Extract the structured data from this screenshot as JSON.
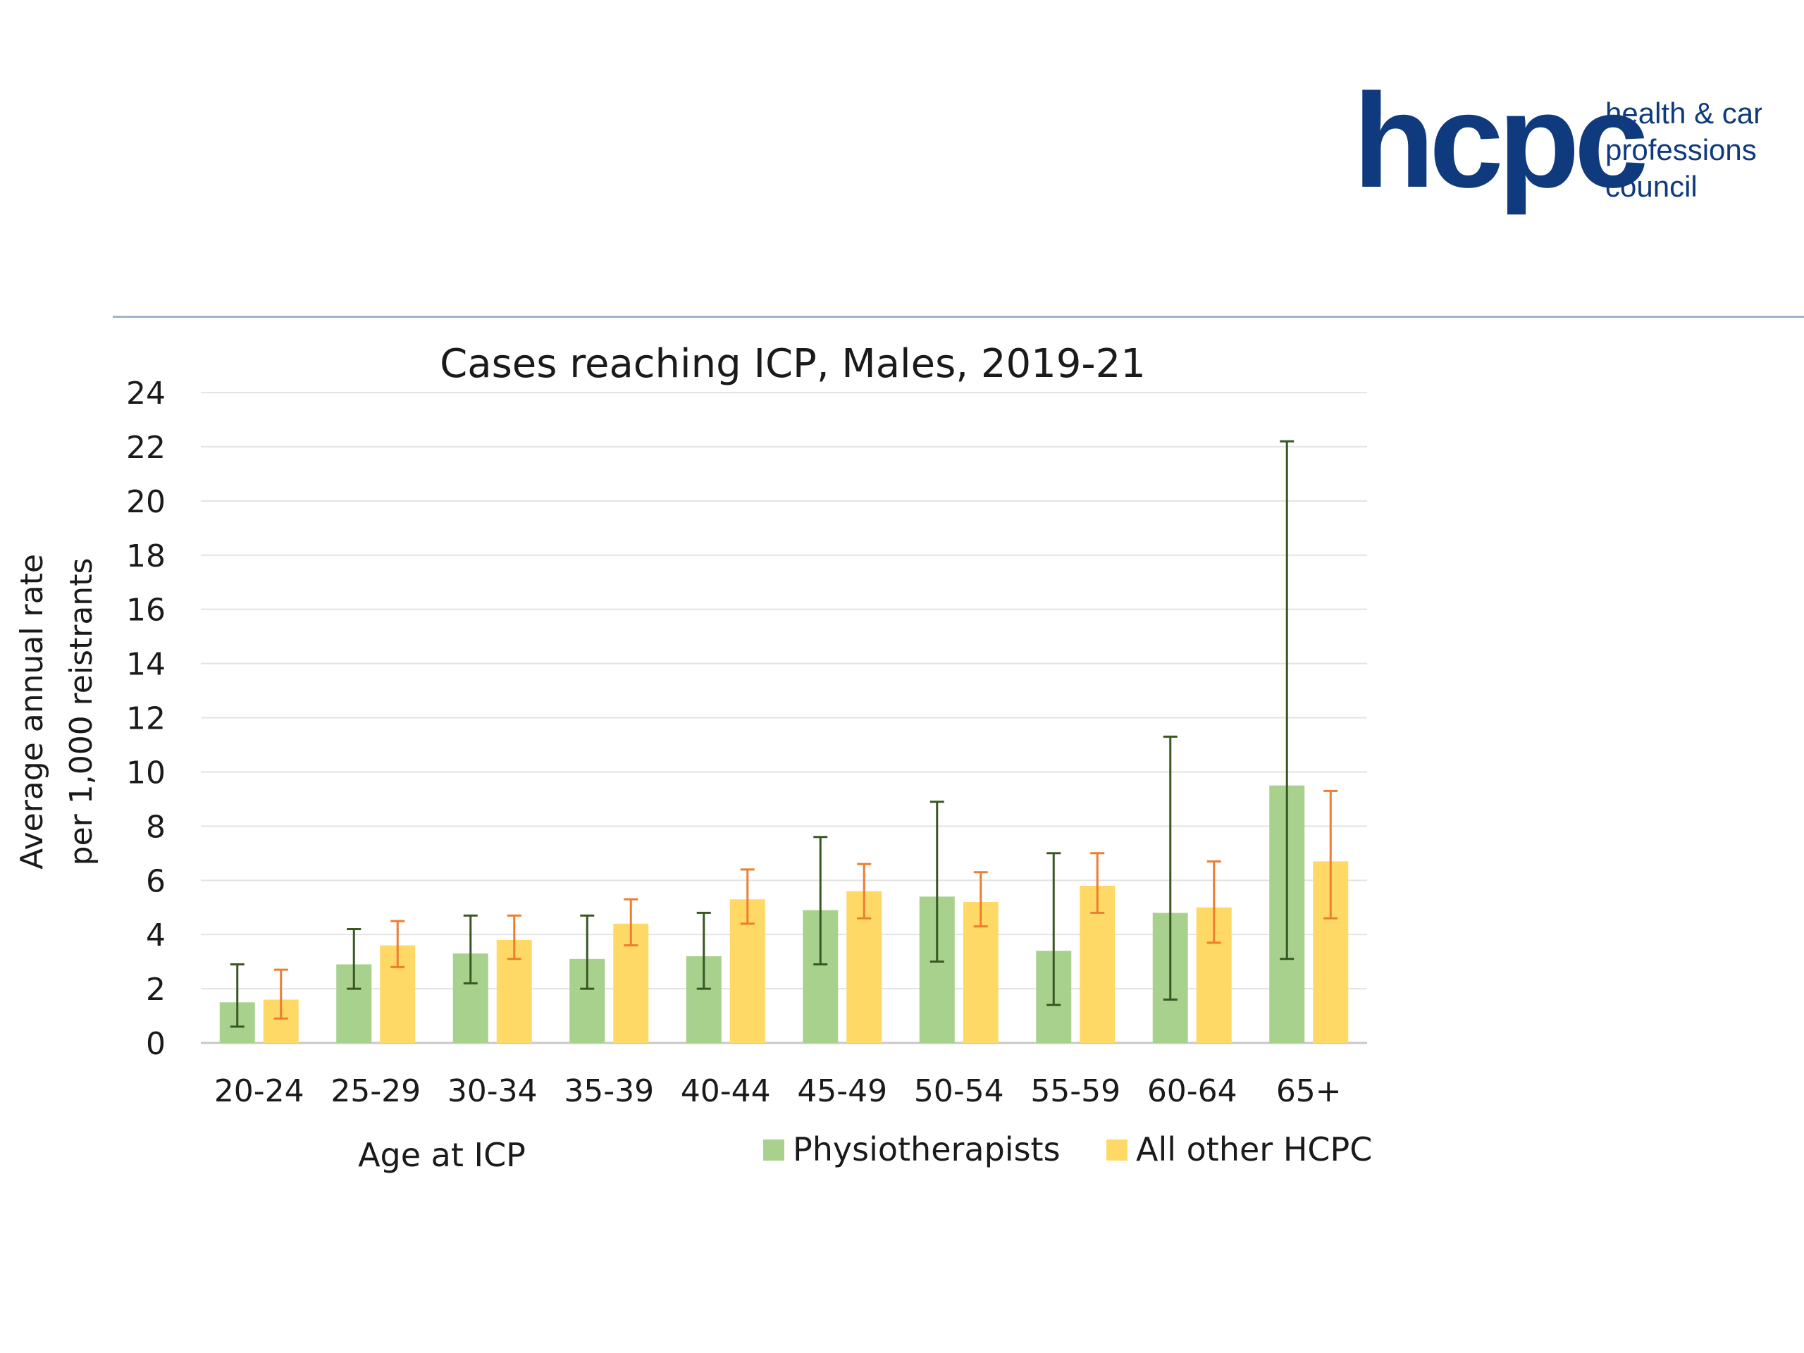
{
  "logo": {
    "wordmark": "hcpc",
    "tagline": [
      "health & care",
      "professions",
      "council"
    ],
    "color": "#0f3a7d"
  },
  "chart_data": {
    "type": "bar",
    "title": "Cases reaching ICP, Males, 2019-21",
    "xlabel": "Age at ICP",
    "ylabel": [
      "Average annual rate",
      "per 1,000 reistrants"
    ],
    "ylim": [
      0,
      24
    ],
    "yticks": [
      0,
      2,
      4,
      6,
      8,
      10,
      12,
      14,
      16,
      18,
      20,
      22,
      24
    ],
    "grid": true,
    "legend_position": "bottom-right",
    "categories": [
      "20-24",
      "25-29",
      "30-34",
      "35-39",
      "40-44",
      "45-49",
      "50-54",
      "55-59",
      "60-64",
      "65+"
    ],
    "series": [
      {
        "name": "Physiotherapists",
        "color": "#a9d18e",
        "error_color": "#385723",
        "values": [
          1.5,
          2.9,
          3.3,
          3.1,
          3.2,
          4.9,
          5.4,
          3.4,
          4.8,
          9.5
        ],
        "lower": [
          0.6,
          2.0,
          2.2,
          2.0,
          2.0,
          2.9,
          3.0,
          1.4,
          1.6,
          3.1
        ],
        "upper": [
          2.9,
          4.2,
          4.7,
          4.7,
          4.8,
          7.6,
          8.9,
          7.0,
          11.3,
          22.2
        ]
      },
      {
        "name": "All other HCPC",
        "color": "#ffd966",
        "error_color": "#ed7d31",
        "values": [
          1.6,
          3.6,
          3.8,
          4.4,
          5.3,
          5.6,
          5.2,
          5.8,
          5.0,
          6.7
        ],
        "lower": [
          0.9,
          2.8,
          3.1,
          3.6,
          4.4,
          4.6,
          4.3,
          4.8,
          3.7,
          4.6
        ],
        "upper": [
          2.7,
          4.5,
          4.7,
          5.3,
          6.4,
          6.6,
          6.3,
          7.0,
          6.7,
          9.3
        ]
      }
    ]
  }
}
